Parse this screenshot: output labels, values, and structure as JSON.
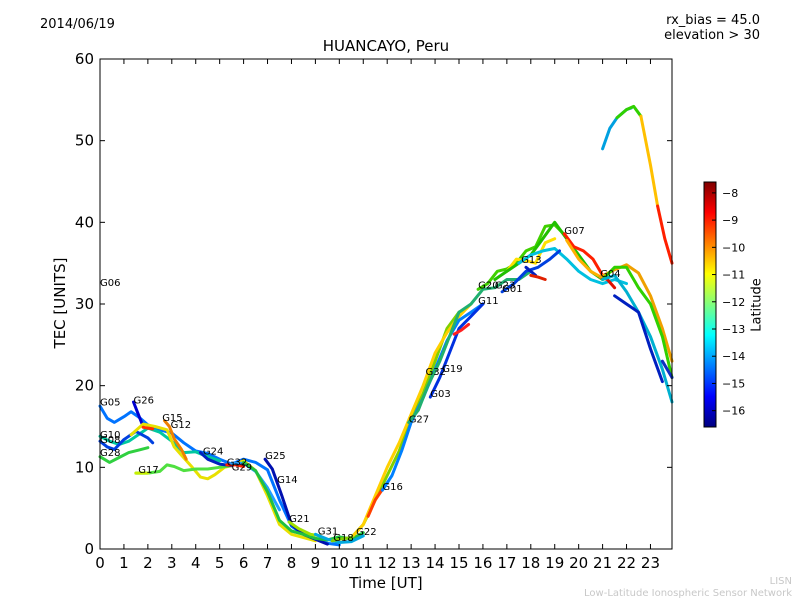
{
  "header": {
    "date": "2014/06/19",
    "rx_bias": "rx_bias = 45.0",
    "elevation": "elevation > 30"
  },
  "footer": {
    "credit_short": "LISN",
    "credit_long": "Low-Latitude Ionospheric Sensor Network"
  },
  "colorbar": {
    "label": "Latitude",
    "ticks": [
      -8,
      -9,
      -10,
      -11,
      -12,
      -13,
      -14,
      -15,
      -16
    ],
    "range": [
      -16.6,
      -7.6
    ],
    "colormap": [
      "#00007f",
      "#0000ff",
      "#007fff",
      "#00ffff",
      "#7fff7f",
      "#ffff00",
      "#ff7f00",
      "#ff0000",
      "#7f0000"
    ]
  },
  "chart_data": {
    "type": "line",
    "title": "HUANCAYO, Peru",
    "xlabel": "Time [UT]",
    "ylabel": "TEC [UNITS]",
    "xlim": [
      0,
      23.9
    ],
    "ylim": [
      0,
      60
    ],
    "xticks": [
      0,
      1,
      2,
      3,
      4,
      5,
      6,
      7,
      8,
      9,
      10,
      11,
      12,
      13,
      14,
      15,
      16,
      17,
      18,
      19,
      20,
      21,
      22,
      23
    ],
    "yticks": [
      0,
      10,
      20,
      30,
      40,
      50,
      60
    ],
    "grid": false,
    "satellite_labels": [
      {
        "name": "G06",
        "x": 0.0,
        "y": 32.2
      },
      {
        "name": "G05",
        "x": 0.0,
        "y": 17.6
      },
      {
        "name": "G26",
        "x": 1.4,
        "y": 17.8
      },
      {
        "name": "G10",
        "x": 0.0,
        "y": 13.6
      },
      {
        "name": "G08",
        "x": 0.0,
        "y": 13.0
      },
      {
        "name": "G28",
        "x": 0.0,
        "y": 11.4
      },
      {
        "name": "G15",
        "x": 2.6,
        "y": 15.7
      },
      {
        "name": "G12",
        "x": 2.95,
        "y": 14.8
      },
      {
        "name": "G17",
        "x": 1.6,
        "y": 9.3
      },
      {
        "name": "G24",
        "x": 4.3,
        "y": 11.6
      },
      {
        "name": "G32",
        "x": 5.3,
        "y": 10.2
      },
      {
        "name": "G29",
        "x": 5.5,
        "y": 9.6
      },
      {
        "name": "G25",
        "x": 6.9,
        "y": 11.0
      },
      {
        "name": "G14",
        "x": 7.4,
        "y": 8.1
      },
      {
        "name": "G21",
        "x": 7.9,
        "y": 3.3
      },
      {
        "name": "G31",
        "x": 9.1,
        "y": 1.8
      },
      {
        "name": "G18",
        "x": 9.75,
        "y": 1.0
      },
      {
        "name": "G22",
        "x": 10.7,
        "y": 1.7
      },
      {
        "name": "G16",
        "x": 11.8,
        "y": 7.2
      },
      {
        "name": "G27",
        "x": 12.9,
        "y": 15.5
      },
      {
        "name": "G03",
        "x": 13.8,
        "y": 18.6
      },
      {
        "name": "G32",
        "x": 13.6,
        "y": 21.3
      },
      {
        "name": "G19",
        "x": 14.3,
        "y": 21.7
      },
      {
        "name": "G11",
        "x": 15.8,
        "y": 30.0
      },
      {
        "name": "G20",
        "x": 15.8,
        "y": 31.9
      },
      {
        "name": "G23",
        "x": 16.5,
        "y": 31.9
      },
      {
        "name": "G01",
        "x": 16.8,
        "y": 31.5
      },
      {
        "name": "G13",
        "x": 17.6,
        "y": 35.0
      },
      {
        "name": "G07",
        "x": 19.4,
        "y": 38.6
      },
      {
        "name": "G04",
        "x": 20.9,
        "y": 33.3
      }
    ],
    "series": [
      {
        "color": "#0073ff",
        "x": [
          0,
          0.3,
          0.6,
          1,
          1.3,
          1.6,
          2,
          2.5,
          3,
          3.5,
          4,
          4.5,
          5,
          5.5,
          6,
          6.5,
          7,
          7.5,
          8,
          8.5,
          9,
          9.5,
          10
        ],
        "y": [
          17.5,
          16,
          15.5,
          16.2,
          16.8,
          16.2,
          15.2,
          14.6,
          14.2,
          13,
          12,
          11.7,
          11,
          10.4,
          11,
          10.6,
          9.7,
          6,
          2.8,
          1.8,
          1.2,
          0.7,
          0.5
        ]
      },
      {
        "color": "#00c8a0",
        "x": [
          0,
          0.4,
          0.8,
          1.2,
          1.6,
          2,
          2.5,
          3,
          3.5,
          4,
          4.5,
          5
        ],
        "y": [
          13.8,
          13.2,
          12.8,
          13.2,
          14,
          14.8,
          14.3,
          13.2,
          11.8,
          11.9,
          11.3,
          10.8
        ]
      },
      {
        "color": "#0040e0",
        "x": [
          0,
          0.3,
          0.6,
          1,
          1.5,
          2,
          2.2
        ],
        "y": [
          13.2,
          12.5,
          12.2,
          13.4,
          14.4,
          13.6,
          13
        ]
      },
      {
        "color": "#30d040",
        "x": [
          0,
          0.4,
          0.8,
          1.2,
          1.6,
          2
        ],
        "y": [
          11.3,
          10.6,
          11.2,
          11.8,
          12.1,
          12.4
        ]
      },
      {
        "color": "#0000d0",
        "x": [
          1.4,
          1.6,
          1.8
        ],
        "y": [
          18,
          16.5,
          15
        ]
      },
      {
        "color": "#e8e000",
        "x": [
          1.3,
          1.8,
          2.3,
          2.8,
          3.1,
          3.4,
          3.8,
          4.2,
          4.5,
          4.8,
          5.2,
          5.5,
          6,
          6.5,
          7,
          7.5,
          8,
          8.5,
          9
        ],
        "y": [
          14,
          15.3,
          15,
          14.6,
          12.5,
          11.5,
          10.2,
          8.8,
          8.6,
          9.1,
          10,
          10.2,
          10.8,
          9.6,
          6.5,
          3,
          1.8,
          1.4,
          1
        ]
      },
      {
        "color": "#ff3000",
        "x": [
          1.8,
          2.0,
          2.2
        ],
        "y": [
          14.9,
          14.8,
          14.7
        ]
      },
      {
        "color": "#f08000",
        "x": [
          2.7,
          2.9,
          3.1,
          3.4,
          3.6
        ],
        "y": [
          15.7,
          15.0,
          13.5,
          12.2,
          11.0
        ]
      },
      {
        "color": "#50e040",
        "x": [
          1.5,
          2,
          2.5,
          2.8,
          3.1,
          3.5,
          4,
          4.5,
          5,
          5.5
        ],
        "y": [
          9.3,
          9.3,
          9.5,
          10.3,
          10.1,
          9.6,
          9.8,
          9.8,
          10,
          10.2
        ]
      },
      {
        "color": "#c8f000",
        "x": [
          1.5,
          2
        ],
        "y": [
          9.3,
          9.3
        ]
      },
      {
        "color": "#0020c0",
        "x": [
          4.2,
          4.5,
          5,
          5.5
        ],
        "y": [
          11.8,
          11,
          10.4,
          10.2
        ]
      },
      {
        "color": "#ff2000",
        "x": [
          5.3,
          5.7,
          6
        ],
        "y": [
          10.3,
          10.3,
          10.1
        ]
      },
      {
        "color": "#20a0ff",
        "x": [
          5.5,
          6,
          6.5,
          7,
          7.5
        ],
        "y": [
          10.5,
          10.5,
          9.5,
          7.5,
          4.8
        ]
      },
      {
        "color": "#0010b0",
        "x": [
          6.9,
          7.2,
          7.6,
          8,
          8.5,
          9,
          9.5
        ],
        "y": [
          11,
          9.8,
          6.5,
          3,
          1.8,
          1.2,
          0.6
        ]
      },
      {
        "color": "#20c040",
        "x": [
          6,
          6.5,
          7,
          7.5,
          8,
          8.5,
          9,
          9.5,
          10,
          10.5,
          11
        ],
        "y": [
          10.6,
          9.6,
          7,
          3.5,
          2.2,
          1.8,
          1.3,
          1.1,
          1.5,
          1.2,
          2
        ]
      },
      {
        "color": "#a0e000",
        "x": [
          7.9,
          8.3,
          8.8,
          9.2
        ],
        "y": [
          3.3,
          2.5,
          1.8,
          1.6
        ]
      },
      {
        "color": "#00a8e0",
        "x": [
          9,
          9.5,
          10,
          10.5,
          11
        ],
        "y": [
          1.8,
          1.2,
          0.8,
          0.9,
          1.6
        ]
      },
      {
        "color": "#80d000",
        "x": [
          9.7,
          10,
          10.5,
          11,
          11.5,
          12,
          12.5,
          13,
          13.5,
          14,
          14.5,
          15
        ],
        "y": [
          1,
          1.2,
          1.4,
          3,
          6,
          9,
          12,
          16,
          19,
          23,
          27,
          29
        ]
      },
      {
        "color": "#ffd000",
        "x": [
          10.6,
          11,
          11.5,
          12,
          12.5,
          13,
          13.5,
          14,
          14.5,
          15,
          15.5
        ],
        "y": [
          1.7,
          3,
          6.5,
          10,
          13,
          16.5,
          20,
          24,
          26.5,
          28.5,
          30
        ]
      },
      {
        "color": "#ff4000",
        "x": [
          11.2,
          11.5,
          11.8
        ],
        "y": [
          4,
          6,
          7.3
        ]
      },
      {
        "color": "#0080ff",
        "x": [
          11.8,
          12.2,
          12.6,
          13,
          13.5,
          14,
          14.5,
          15,
          15.5,
          16
        ],
        "y": [
          7.2,
          9,
          12,
          15.5,
          18.5,
          22,
          25.5,
          28,
          29,
          30
        ]
      },
      {
        "color": "#20b070",
        "x": [
          12.9,
          13.3,
          13.7,
          14.2,
          14.6,
          15,
          15.5,
          16,
          16.5,
          17,
          17.5,
          18
        ],
        "y": [
          15.5,
          17,
          20,
          23,
          26,
          29,
          30,
          31.8,
          32,
          33,
          33,
          34
        ]
      },
      {
        "color": "#0030e0",
        "x": [
          13.8,
          14.2,
          14.6,
          15,
          15.5,
          16
        ],
        "y": [
          18.6,
          21,
          24,
          27,
          28.5,
          30
        ]
      },
      {
        "color": "#ff2020",
        "x": [
          14.8,
          15.1,
          15.4
        ],
        "y": [
          26.3,
          26.8,
          27.5
        ]
      },
      {
        "color": "#40d000",
        "x": [
          15.8,
          16.2,
          16.6,
          17,
          17.4,
          17.8,
          18.2,
          18.6,
          19,
          19.4
        ],
        "y": [
          31.8,
          32.5,
          34,
          34.3,
          35,
          36.5,
          37,
          39.5,
          39.7,
          38.5
        ]
      },
      {
        "color": "#ffe000",
        "x": [
          17,
          17.4,
          17.8,
          18.2,
          18.6,
          19
        ],
        "y": [
          34,
          35.5,
          35.3,
          35,
          37.5,
          38
        ]
      },
      {
        "color": "#20c000",
        "x": [
          16.5,
          17,
          17.5,
          18,
          18.5,
          19,
          19.5,
          20,
          20.5,
          21
        ],
        "y": [
          33,
          34,
          35,
          36,
          38,
          40,
          38,
          36,
          34,
          33
        ]
      },
      {
        "color": "#00c0e0",
        "x": [
          17.5,
          18,
          18.5,
          19,
          19.5,
          20,
          20.5,
          21,
          21.5,
          22
        ],
        "y": [
          35,
          36,
          36.5,
          36.8,
          35.5,
          34,
          33,
          32.5,
          33,
          32.5
        ]
      },
      {
        "color": "#0040e0",
        "x": [
          16.8,
          17.3,
          17.8,
          18.3,
          18.8,
          19.2
        ],
        "y": [
          31.5,
          32.5,
          34,
          34.5,
          35.5,
          36.5
        ]
      },
      {
        "color": "#0020c0",
        "x": [
          17.8,
          18,
          18.2
        ],
        "y": [
          34.5,
          34,
          33.5
        ]
      },
      {
        "color": "#e02000",
        "x": [
          18,
          18.3,
          18.6
        ],
        "y": [
          33.5,
          33.3,
          33
        ]
      },
      {
        "color": "#ff2000",
        "x": [
          19.4,
          19.8,
          20.2,
          20.6,
          21
        ],
        "y": [
          38.6,
          37,
          36.5,
          35.5,
          33.5
        ]
      },
      {
        "color": "#ffb000",
        "x": [
          19.5,
          20,
          20.5,
          21
        ],
        "y": [
          37.8,
          35.5,
          34,
          33.2
        ]
      },
      {
        "color": "#e01000",
        "x": [
          20.9,
          21.2,
          21.5
        ],
        "y": [
          33.3,
          33,
          32
        ]
      },
      {
        "color": "#f0a000",
        "x": [
          20.9,
          21.5,
          22,
          22.5,
          23,
          23.5,
          23.9
        ],
        "y": [
          33.3,
          34.2,
          34.8,
          33.8,
          31,
          27,
          23
        ]
      },
      {
        "color": "#30d000",
        "x": [
          21,
          21.5,
          22,
          22.5,
          23,
          23.5,
          23.9
        ],
        "y": [
          33,
          34.5,
          34.5,
          32,
          30,
          26,
          21
        ]
      },
      {
        "color": "#00b0d0",
        "x": [
          21,
          21.5,
          22,
          22.5,
          23,
          23.5,
          23.9
        ],
        "y": [
          33,
          33.5,
          31.5,
          29,
          26,
          22,
          18
        ]
      },
      {
        "color": "#0020c0",
        "x": [
          21.5,
          22,
          22.5,
          23,
          23.5
        ],
        "y": [
          31,
          30,
          29,
          24.5,
          20.5
        ]
      },
      {
        "color": "#1030c0",
        "x": [
          23.5,
          23.7,
          23.9
        ],
        "y": [
          23,
          22,
          21
        ]
      },
      {
        "color": "#00a0e0",
        "x": [
          21,
          21.3,
          21.6,
          22,
          22.2
        ],
        "y": [
          49,
          51.5,
          52.8,
          53.8,
          54
        ]
      },
      {
        "color": "#30d000",
        "x": [
          21.6,
          22,
          22.3,
          22.6
        ],
        "y": [
          52.8,
          53.8,
          54.2,
          53
        ]
      },
      {
        "color": "#ffc000",
        "x": [
          22.6,
          23,
          23.3
        ],
        "y": [
          53,
          47,
          42
        ]
      },
      {
        "color": "#ff2000",
        "x": [
          23.3,
          23.6,
          23.9
        ],
        "y": [
          42,
          38,
          35
        ]
      }
    ]
  }
}
